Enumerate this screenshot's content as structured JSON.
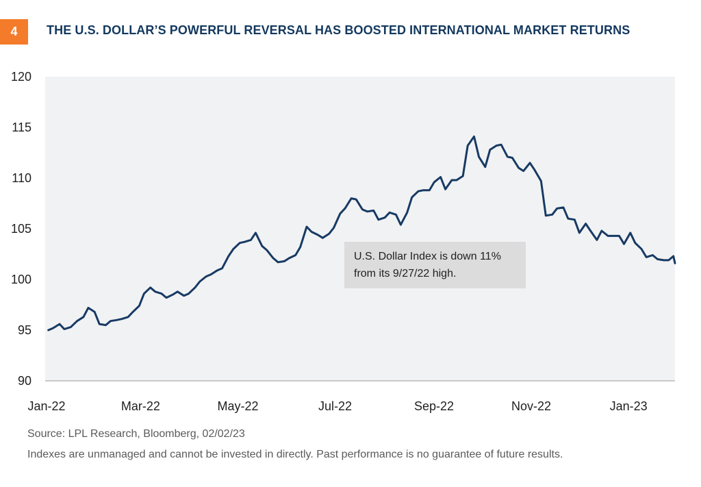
{
  "header": {
    "number": "4",
    "title": "THE U.S. DOLLAR’S POWERFUL REVERSAL HAS BOOSTED INTERNATIONAL MARKET RETURNS"
  },
  "annotation": {
    "line1": "U.S. Dollar Index is down 11%",
    "line2": "from its 9/27/22 high."
  },
  "footer": {
    "source": "Source: LPL Research, Bloomberg,  02/02/23",
    "disclaimer": "Indexes are unmanaged and cannot be invested in directly. Past performance is no guarantee of future results."
  },
  "colors": {
    "line": "#173A63",
    "plot_background": "#F1F2F4",
    "badge": "#F47B2A",
    "title": "#13385E"
  },
  "chart_data": {
    "type": "line",
    "title": "THE U.S. DOLLAR’S POWERFUL REVERSAL HAS BOOSTED INTERNATIONAL MARKET RETURNS",
    "xlabel": "",
    "ylabel": "",
    "ylim": [
      90,
      120
    ],
    "y_ticks": [
      90,
      95,
      100,
      105,
      110,
      115,
      120
    ],
    "x_tick_labels": [
      "Jan-22",
      "Mar-22",
      "May-22",
      "Jul-22",
      "Sep-22",
      "Nov-22",
      "Jan-23"
    ],
    "x_tick_dates": [
      "2022-01-01",
      "2022-03-01",
      "2022-05-01",
      "2022-07-01",
      "2022-09-01",
      "2022-11-01",
      "2023-01-01"
    ],
    "xlim": [
      "2022-01-01",
      "2023-01-31"
    ],
    "grid": false,
    "series": [
      {
        "name": "",
        "points": [
          [
            "2022-01-03",
            95.0
          ],
          [
            "2022-01-06",
            95.2
          ],
          [
            "2022-01-10",
            95.6
          ],
          [
            "2022-01-13",
            95.1
          ],
          [
            "2022-01-17",
            95.3
          ],
          [
            "2022-01-21",
            95.9
          ],
          [
            "2022-01-25",
            96.3
          ],
          [
            "2022-01-28",
            97.2
          ],
          [
            "2022-02-01",
            96.8
          ],
          [
            "2022-02-04",
            95.6
          ],
          [
            "2022-02-08",
            95.5
          ],
          [
            "2022-02-11",
            95.9
          ],
          [
            "2022-02-15",
            96.0
          ],
          [
            "2022-02-18",
            96.1
          ],
          [
            "2022-02-22",
            96.3
          ],
          [
            "2022-02-25",
            96.8
          ],
          [
            "2022-03-01",
            97.4
          ],
          [
            "2022-03-04",
            98.6
          ],
          [
            "2022-03-08",
            99.2
          ],
          [
            "2022-03-11",
            98.8
          ],
          [
            "2022-03-15",
            98.6
          ],
          [
            "2022-03-18",
            98.2
          ],
          [
            "2022-03-22",
            98.5
          ],
          [
            "2022-03-25",
            98.8
          ],
          [
            "2022-03-29",
            98.4
          ],
          [
            "2022-04-01",
            98.6
          ],
          [
            "2022-04-05",
            99.2
          ],
          [
            "2022-04-08",
            99.8
          ],
          [
            "2022-04-12",
            100.3
          ],
          [
            "2022-04-15",
            100.5
          ],
          [
            "2022-04-19",
            100.9
          ],
          [
            "2022-04-22",
            101.1
          ],
          [
            "2022-04-26",
            102.3
          ],
          [
            "2022-04-29",
            103.0
          ],
          [
            "2022-05-03",
            103.6
          ],
          [
            "2022-05-06",
            103.7
          ],
          [
            "2022-05-10",
            103.9
          ],
          [
            "2022-05-13",
            104.6
          ],
          [
            "2022-05-17",
            103.3
          ],
          [
            "2022-05-20",
            102.9
          ],
          [
            "2022-05-24",
            102.1
          ],
          [
            "2022-05-27",
            101.7
          ],
          [
            "2022-05-31",
            101.8
          ],
          [
            "2022-06-03",
            102.1
          ],
          [
            "2022-06-07",
            102.4
          ],
          [
            "2022-06-10",
            103.2
          ],
          [
            "2022-06-14",
            105.2
          ],
          [
            "2022-06-17",
            104.7
          ],
          [
            "2022-06-21",
            104.4
          ],
          [
            "2022-06-24",
            104.1
          ],
          [
            "2022-06-28",
            104.5
          ],
          [
            "2022-07-01",
            105.1
          ],
          [
            "2022-07-05",
            106.5
          ],
          [
            "2022-07-08",
            107.0
          ],
          [
            "2022-07-12",
            108.0
          ],
          [
            "2022-07-15",
            107.9
          ],
          [
            "2022-07-19",
            106.9
          ],
          [
            "2022-07-22",
            106.7
          ],
          [
            "2022-07-26",
            106.8
          ],
          [
            "2022-07-29",
            105.9
          ],
          [
            "2022-08-02",
            106.1
          ],
          [
            "2022-08-05",
            106.6
          ],
          [
            "2022-08-09",
            106.4
          ],
          [
            "2022-08-12",
            105.4
          ],
          [
            "2022-08-16",
            106.6
          ],
          [
            "2022-08-19",
            108.1
          ],
          [
            "2022-08-23",
            108.7
          ],
          [
            "2022-08-26",
            108.8
          ],
          [
            "2022-08-30",
            108.8
          ],
          [
            "2022-09-02",
            109.6
          ],
          [
            "2022-09-06",
            110.1
          ],
          [
            "2022-09-09",
            108.9
          ],
          [
            "2022-09-13",
            109.8
          ],
          [
            "2022-09-16",
            109.8
          ],
          [
            "2022-09-20",
            110.2
          ],
          [
            "2022-09-23",
            113.2
          ],
          [
            "2022-09-27",
            114.1
          ],
          [
            "2022-09-30",
            112.1
          ],
          [
            "2022-10-04",
            111.1
          ],
          [
            "2022-10-07",
            112.8
          ],
          [
            "2022-10-11",
            113.2
          ],
          [
            "2022-10-14",
            113.3
          ],
          [
            "2022-10-18",
            112.1
          ],
          [
            "2022-10-21",
            112.0
          ],
          [
            "2022-10-25",
            111.0
          ],
          [
            "2022-10-28",
            110.7
          ],
          [
            "2022-11-01",
            111.5
          ],
          [
            "2022-11-04",
            110.8
          ],
          [
            "2022-11-08",
            109.7
          ],
          [
            "2022-11-11",
            106.3
          ],
          [
            "2022-11-15",
            106.4
          ],
          [
            "2022-11-18",
            107.0
          ],
          [
            "2022-11-22",
            107.1
          ],
          [
            "2022-11-25",
            106.0
          ],
          [
            "2022-11-29",
            105.9
          ],
          [
            "2022-12-02",
            104.6
          ],
          [
            "2022-12-06",
            105.5
          ],
          [
            "2022-12-09",
            104.8
          ],
          [
            "2022-12-13",
            103.9
          ],
          [
            "2022-12-16",
            104.8
          ],
          [
            "2022-12-20",
            104.3
          ],
          [
            "2022-12-23",
            104.3
          ],
          [
            "2022-12-27",
            104.3
          ],
          [
            "2022-12-30",
            103.5
          ],
          [
            "2023-01-03",
            104.6
          ],
          [
            "2023-01-06",
            103.6
          ],
          [
            "2023-01-10",
            103.0
          ],
          [
            "2023-01-13",
            102.2
          ],
          [
            "2023-01-17",
            102.4
          ],
          [
            "2023-01-20",
            102.0
          ],
          [
            "2023-01-24",
            101.9
          ],
          [
            "2023-01-27",
            101.9
          ],
          [
            "2023-01-30",
            102.3
          ],
          [
            "2023-01-31",
            101.6
          ]
        ]
      }
    ]
  }
}
